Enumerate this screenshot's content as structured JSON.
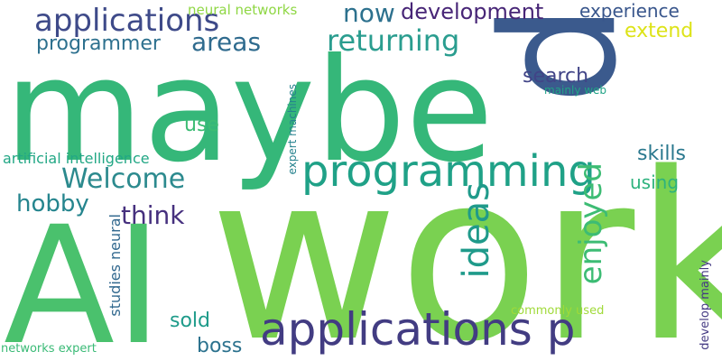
{
  "words": [
    {
      "name": "work",
      "text": "work",
      "color": "#7ad151",
      "rotated": false
    },
    {
      "name": "maybe",
      "text": "maybe",
      "color": "#35b779",
      "rotated": false
    },
    {
      "name": "ai",
      "text": "AI",
      "color": "#4ac16d",
      "rotated": false
    },
    {
      "name": "p-large",
      "text": "p",
      "color": "#3b5a8d",
      "rotated": true
    },
    {
      "name": "applications-p",
      "text": "applications p",
      "color": "#423c82",
      "rotated": false
    },
    {
      "name": "programming",
      "text": "programming",
      "color": "#1fa187",
      "rotated": false
    },
    {
      "name": "applications",
      "text": "applications",
      "color": "#3e4a89",
      "rotated": false
    },
    {
      "name": "ideas",
      "text": "ideas",
      "color": "#1f9a8a",
      "rotated": true
    },
    {
      "name": "enjoyed",
      "text": "enjoyed",
      "color": "#3dbc74",
      "rotated": true
    },
    {
      "name": "returning",
      "text": "returning",
      "color": "#2a9d8f",
      "rotated": false
    },
    {
      "name": "welcome",
      "text": "Welcome",
      "color": "#2c8a8e",
      "rotated": false
    },
    {
      "name": "areas",
      "text": "areas",
      "color": "#2f6b8e",
      "rotated": false
    },
    {
      "name": "now",
      "text": "now",
      "color": "#2d718e",
      "rotated": false
    },
    {
      "name": "development",
      "text": "development",
      "color": "#482677",
      "rotated": false
    },
    {
      "name": "think",
      "text": "think",
      "color": "#46307e",
      "rotated": false
    },
    {
      "name": "hobby",
      "text": "hobby",
      "color": "#25858e",
      "rotated": false
    },
    {
      "name": "search",
      "text": "search",
      "color": "#414487",
      "rotated": false
    },
    {
      "name": "programmer",
      "text": "programmer",
      "color": "#2d708e",
      "rotated": false
    },
    {
      "name": "skills",
      "text": "skills",
      "color": "#2a788e",
      "rotated": false
    },
    {
      "name": "boss",
      "text": "boss",
      "color": "#2c728e",
      "rotated": false
    },
    {
      "name": "sold",
      "text": "sold",
      "color": "#1e9b8a",
      "rotated": false
    },
    {
      "name": "extend",
      "text": "extend",
      "color": "#dde318",
      "rotated": false
    },
    {
      "name": "experience",
      "text": "experience",
      "color": "#39568c",
      "rotated": false
    },
    {
      "name": "use",
      "text": "use",
      "color": "#3dbc74",
      "rotated": false
    },
    {
      "name": "using",
      "text": "using",
      "color": "#2db27d",
      "rotated": false
    },
    {
      "name": "artificial-intelligence",
      "text": "artificial intelligence",
      "color": "#22a785",
      "rotated": false
    },
    {
      "name": "neural-networks",
      "text": "neural networks",
      "color": "#8fd744",
      "rotated": false
    },
    {
      "name": "studies-neural",
      "text": "studies neural",
      "color": "#31688e",
      "rotated": true
    },
    {
      "name": "expert-machines",
      "text": "expert machines",
      "color": "#26828e",
      "rotated": true
    },
    {
      "name": "mainly-web",
      "text": "mainly web",
      "color": "#20a386",
      "rotated": false
    },
    {
      "name": "commonly-used",
      "text": "commonly used",
      "color": "#a0da39",
      "rotated": false
    },
    {
      "name": "networks-expert",
      "text": "networks expert",
      "color": "#3aba76",
      "rotated": false
    },
    {
      "name": "develop-mainly",
      "text": "develop mainly",
      "color": "#443a83",
      "rotated": true
    }
  ]
}
